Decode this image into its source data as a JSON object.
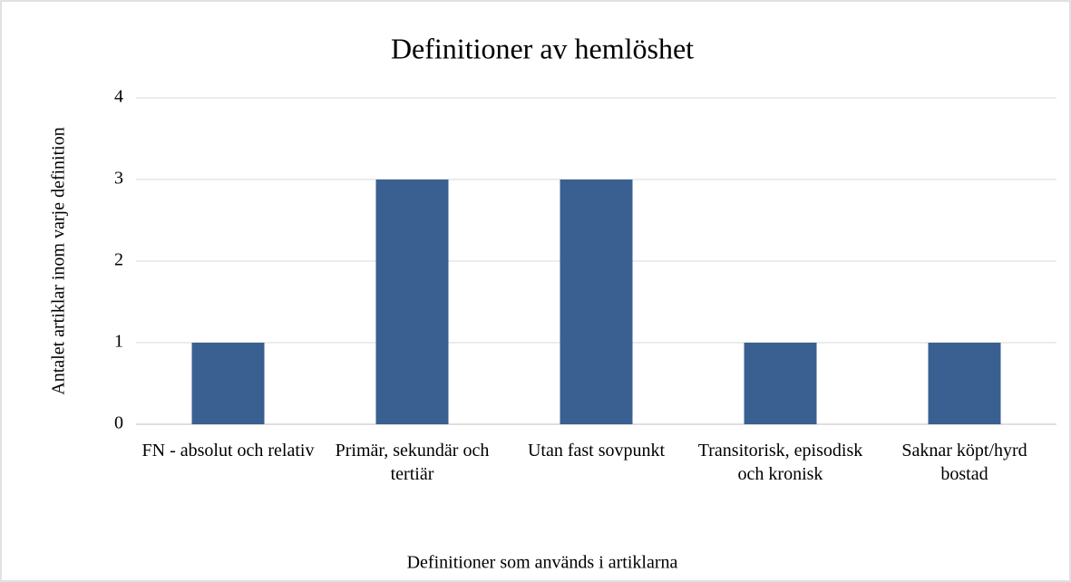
{
  "chart_data": {
    "type": "bar",
    "title": "Definitioner av hemlöshet",
    "x_label": "Definitioner som används i artiklarna",
    "y_label": "Antalet artiklar inom varje definition",
    "categories": [
      "FN - absolut och relativ",
      "Primär, sekundär och tertiär",
      "Utan fast sovpunkt",
      "Transitorisk, episodisk och kronisk",
      "Saknar köpt/hyrd bostad"
    ],
    "values": [
      1,
      3,
      3,
      1,
      1
    ],
    "color": "#3a6091",
    "ylim": [
      0,
      4
    ],
    "yticks": [
      0,
      1,
      2,
      3,
      4
    ],
    "grid": true
  }
}
